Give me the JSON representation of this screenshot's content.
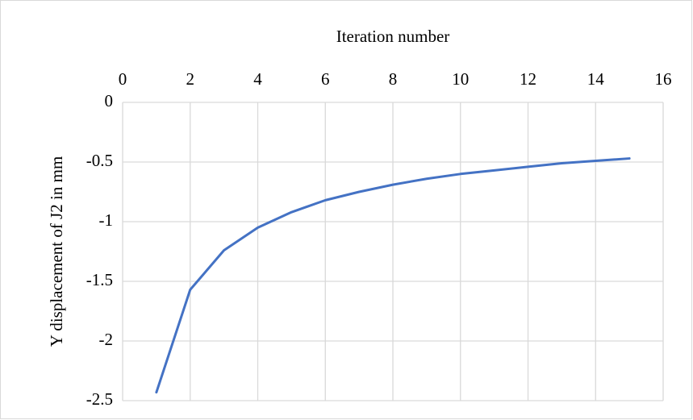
{
  "chart_data": {
    "type": "line",
    "x_label": "Iteration number",
    "y_label": "Y displacement of J2 in mm",
    "x": [
      1,
      2,
      3,
      4,
      5,
      6,
      7,
      8,
      9,
      10,
      11,
      12,
      13,
      14,
      15
    ],
    "series": [
      {
        "color": "#4472c4",
        "values": [
          -2.43,
          -1.57,
          -1.24,
          -1.05,
          -0.92,
          -0.82,
          -0.75,
          -0.69,
          -0.64,
          -0.6,
          -0.57,
          -0.54,
          -0.51,
          -0.49,
          -0.47
        ]
      }
    ],
    "xlim": [
      0,
      16
    ],
    "xticks": [
      0,
      2,
      4,
      6,
      8,
      10,
      12,
      14,
      16
    ],
    "ylim": [
      -2.5,
      0
    ],
    "yticks": [
      0,
      -0.5,
      -1,
      -1.5,
      -2,
      -2.5
    ],
    "grid": true,
    "x_axis_position": "top"
  }
}
